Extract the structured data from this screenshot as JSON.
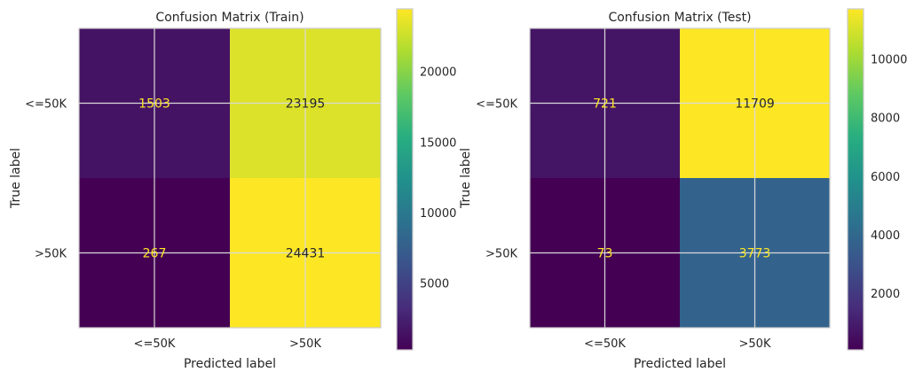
{
  "chart_data": [
    {
      "type": "heatmap",
      "title": "Confusion Matrix (Train)",
      "xlabel": "Predicted label",
      "ylabel": "True label",
      "x_categories": [
        "<=50K",
        ">50K"
      ],
      "y_categories": [
        "<=50K",
        ">50K"
      ],
      "values": [
        [
          1503,
          23195
        ],
        [
          267,
          24431
        ]
      ],
      "colormap": "viridis",
      "colorbar": {
        "vmin": 267,
        "vmax": 24431,
        "ticks": [
          5000,
          10000,
          15000,
          20000
        ]
      },
      "grid": true
    },
    {
      "type": "heatmap",
      "title": "Confusion Matrix (Test)",
      "xlabel": "Predicted label",
      "ylabel": "True label",
      "x_categories": [
        "<=50K",
        ">50K"
      ],
      "y_categories": [
        "<=50K",
        ">50K"
      ],
      "values": [
        [
          721,
          11709
        ],
        [
          73,
          3773
        ]
      ],
      "colormap": "viridis",
      "colorbar": {
        "vmin": 73,
        "vmax": 11709,
        "ticks": [
          2000,
          4000,
          6000,
          8000,
          10000
        ]
      },
      "grid": true
    }
  ]
}
